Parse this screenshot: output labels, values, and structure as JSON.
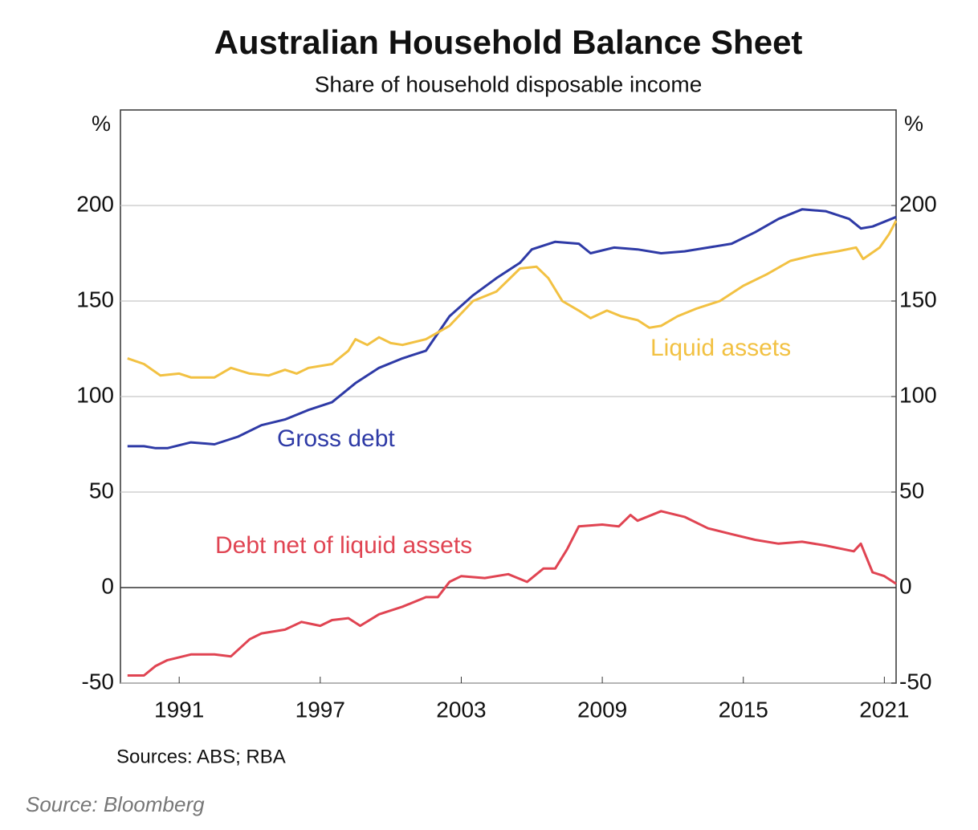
{
  "chart_data": {
    "type": "line",
    "title": "Australian Household Balance Sheet",
    "subtitle": "Share of household disposable income",
    "y_unit": "%",
    "y2_unit": "%",
    "source": "Sources: ABS; RBA",
    "footer": "Source: Bloomberg",
    "xlim": [
      1989,
      2022
    ],
    "xticks": [
      {
        "value": 1991.5,
        "label": "1991"
      },
      {
        "value": 1997.5,
        "label": "1997"
      },
      {
        "value": 2003.5,
        "label": "2003"
      },
      {
        "value": 2009.5,
        "label": "2009"
      },
      {
        "value": 2015.5,
        "label": "2015"
      },
      {
        "value": 2021.5,
        "label": "2021"
      }
    ],
    "ylim": [
      -50,
      250
    ],
    "yticks": [
      -50,
      0,
      50,
      100,
      150,
      200
    ],
    "y2lim": [
      -50,
      250
    ],
    "y2ticks": [
      -50,
      0,
      50,
      100,
      150,
      200
    ],
    "grid": true,
    "series": [
      {
        "name": "Gross debt",
        "color": "#2e3aa6",
        "x": [
          1989.3,
          1990,
          1990.5,
          1991,
          1992,
          1993,
          1994,
          1995,
          1996,
          1997,
          1998,
          1999,
          2000,
          2001,
          2002,
          2003,
          2004,
          2005,
          2006,
          2006.5,
          2007.5,
          2008.5,
          2009,
          2010,
          2011,
          2012,
          2013,
          2014,
          2015,
          2016,
          2017,
          2018,
          2019,
          2020,
          2020.5,
          2021,
          2022
        ],
        "values": [
          74,
          74,
          73,
          73,
          76,
          75,
          79,
          85,
          88,
          93,
          97,
          107,
          115,
          120,
          124,
          142,
          153,
          162,
          170,
          177,
          181,
          180,
          175,
          178,
          177,
          175,
          176,
          178,
          180,
          186,
          193,
          198,
          197,
          193,
          188,
          189,
          194
        ]
      },
      {
        "name": "Liquid assets",
        "color": "#f2c142",
        "x": [
          1989.3,
          1990,
          1990.7,
          1991.5,
          1992,
          1993,
          1993.7,
          1994.5,
          1995.3,
          1996,
          1996.5,
          1997,
          1998,
          1998.7,
          1999,
          1999.5,
          2000,
          2000.5,
          2001,
          2002,
          2003,
          2004,
          2005,
          2006,
          2006.7,
          2007.2,
          2007.8,
          2008.5,
          2009,
          2009.7,
          2010.3,
          2011,
          2011.5,
          2012,
          2012.7,
          2013.5,
          2014.5,
          2015.5,
          2016.5,
          2017.5,
          2018.5,
          2019.5,
          2020.3,
          2020.6,
          2021.3,
          2021.7,
          2022
        ],
        "values": [
          120,
          117,
          111,
          112,
          110,
          110,
          115,
          112,
          111,
          114,
          112,
          115,
          117,
          124,
          130,
          127,
          131,
          128,
          127,
          130,
          137,
          150,
          155,
          167,
          168,
          162,
          150,
          145,
          141,
          145,
          142,
          140,
          136,
          137,
          142,
          146,
          150,
          158,
          164,
          171,
          174,
          176,
          178,
          172,
          178,
          185,
          192
        ]
      },
      {
        "name": "Debt net of liquid assets",
        "color": "#e04452",
        "x": [
          1989.3,
          1990,
          1990.5,
          1991,
          1992,
          1993,
          1993.7,
          1994.5,
          1995,
          1996,
          1996.7,
          1997.5,
          1998,
          1998.7,
          1999.2,
          2000,
          2001,
          2002,
          2002.5,
          2003,
          2003.5,
          2004.5,
          2005.5,
          2006.3,
          2007,
          2007.5,
          2008,
          2008.5,
          2009.5,
          2010.2,
          2010.7,
          2011,
          2012,
          2013,
          2014,
          2015,
          2016,
          2017,
          2018,
          2019,
          2020.2,
          2020.5,
          2021,
          2021.5,
          2022
        ],
        "values": [
          -46,
          -46,
          -41,
          -38,
          -35,
          -35,
          -36,
          -27,
          -24,
          -22,
          -18,
          -20,
          -17,
          -16,
          -20,
          -14,
          -10,
          -5,
          -5,
          3,
          6,
          5,
          7,
          3,
          10,
          10,
          20,
          32,
          33,
          32,
          38,
          35,
          40,
          37,
          31,
          28,
          25,
          23,
          24,
          22,
          19,
          23,
          8,
          6,
          2
        ]
      }
    ]
  }
}
